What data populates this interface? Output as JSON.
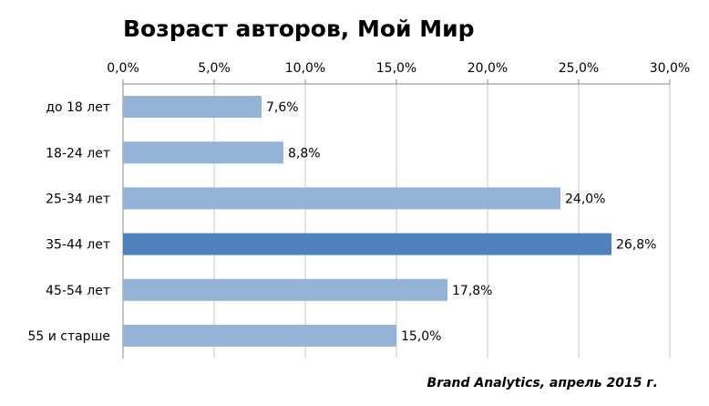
{
  "chart_data": {
    "type": "bar",
    "orientation": "horizontal",
    "title": "Возраст авторов, Мой Мир",
    "categories": [
      "до 18 лет",
      "18-24 лет",
      "25-34 лет",
      "35-44 лет",
      "45-54 лет",
      "55 и старше"
    ],
    "values": [
      7.6,
      8.8,
      24.0,
      26.8,
      17.8,
      15.0
    ],
    "value_labels": [
      "7,6%",
      "8,8%",
      "24,0%",
      "26,8%",
      "17,8%",
      "15,0%"
    ],
    "colors": [
      "#95b3d7",
      "#95b3d7",
      "#95b3d7",
      "#4f81bd",
      "#95b3d7",
      "#95b3d7"
    ],
    "xlim": [
      0,
      30
    ],
    "xticks": [
      {
        "value": 0,
        "label": "0,0%"
      },
      {
        "value": 5,
        "label": "5,0%"
      },
      {
        "value": 10,
        "label": "10,0%"
      },
      {
        "value": 15,
        "label": "15,0%"
      },
      {
        "value": 20,
        "label": "20,0%"
      },
      {
        "value": 25,
        "label": "25,0%"
      },
      {
        "value": 30,
        "label": "30,0%"
      }
    ],
    "grid": true,
    "source": "Brand Analytics, апрель 2015 г."
  }
}
